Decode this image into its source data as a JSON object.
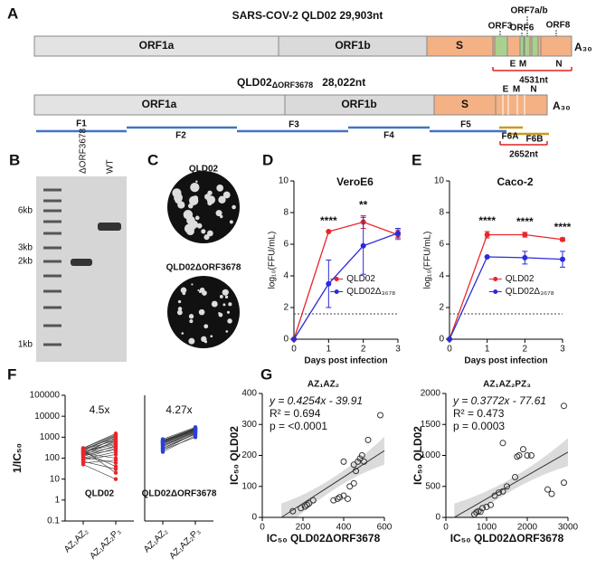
{
  "panel_labels": [
    "A",
    "B",
    "C",
    "D",
    "E",
    "F",
    "G"
  ],
  "genome": {
    "top": {
      "title": "SARS-COV-2  QLD02 29,903nt",
      "genes": [
        "ORF1a",
        "ORF1b",
        "S",
        "ORF3",
        "ORF6",
        "ORF7a/b",
        "ORF8",
        "E",
        "M",
        "N"
      ],
      "tail": "A₃₀",
      "span": "4531nt"
    },
    "bottom": {
      "title": "QLD02",
      "title_sub": "ΔORF3678",
      "length": "28,022nt",
      "genes": [
        "ORF1a",
        "ORF1b",
        "S",
        "E",
        "M",
        "N"
      ],
      "tail": "A₃₀",
      "fragments": [
        "F1",
        "F2",
        "F3",
        "F4",
        "F5",
        "F6A",
        "F6B"
      ],
      "span": "2652nt"
    }
  },
  "gel": {
    "lanes": [
      "ΔORF3678",
      "WT"
    ],
    "markers": [
      "6kb",
      "3kb",
      "2kb",
      "1kb"
    ]
  },
  "plaques": {
    "labels": [
      "QLD02",
      "QLD02ΔORF3678"
    ]
  },
  "chart_data": [
    {
      "type": "line",
      "title": "VeroE6",
      "ylabel": "log₁₀(FFU/mL)",
      "xlabel": "Days post infection",
      "x": [
        0,
        1,
        2,
        3
      ],
      "xlim": [
        0,
        3
      ],
      "xticks": [
        0,
        1,
        2,
        3
      ],
      "ylim": [
        0,
        10
      ],
      "yticks": [
        0,
        2,
        4,
        6,
        8,
        10
      ],
      "limit": 1.6,
      "series": [
        {
          "name": "QLD02",
          "color": "#e8262b",
          "values": [
            0,
            6.8,
            7.4,
            6.6
          ],
          "errors": [
            0,
            0,
            0.4,
            0.3
          ]
        },
        {
          "name": "QLD02Δ₃₆₇₈",
          "color": "#2b2bd9",
          "values": [
            0,
            3.5,
            5.9,
            6.7
          ],
          "errors": [
            0,
            1.5,
            1.8,
            0.3
          ]
        }
      ],
      "annotations": [
        {
          "x": 1,
          "text": "****"
        },
        {
          "x": 2,
          "text": "**"
        }
      ]
    },
    {
      "type": "line",
      "title": "Caco-2",
      "ylabel": "log₁₀(FFU/mL)",
      "xlabel": "Days post infection",
      "x": [
        0,
        1,
        2,
        3
      ],
      "xlim": [
        0,
        3
      ],
      "xticks": [
        0,
        1,
        2,
        3
      ],
      "ylim": [
        0,
        10
      ],
      "yticks": [
        0,
        2,
        4,
        6,
        8,
        10
      ],
      "limit": 1.6,
      "series": [
        {
          "name": "QLD02",
          "color": "#e8262b",
          "values": [
            0,
            6.6,
            6.6,
            6.3
          ],
          "errors": [
            0,
            0.2,
            0.15,
            0.1
          ]
        },
        {
          "name": "QLD02Δ₃₆₇₈",
          "color": "#2b2bd9",
          "values": [
            0,
            5.2,
            5.15,
            5.05
          ],
          "errors": [
            0,
            0,
            0.4,
            0.5
          ]
        }
      ],
      "annotations": [
        {
          "x": 1,
          "text": "****"
        },
        {
          "x": 2,
          "text": "****"
        },
        {
          "x": 3,
          "text": "****"
        }
      ]
    },
    {
      "type": "paired",
      "ylabel": "1/IC₅₀",
      "log": true,
      "ylim": [
        0.1,
        100000
      ],
      "yticks": [
        0.1,
        1,
        10,
        100,
        1000,
        10000,
        100000
      ],
      "categories": [
        "AZ₁AZ₂",
        "AZ₁AZ₂P₃"
      ],
      "series": [
        {
          "name": "QLD02",
          "color": "#e8262b",
          "annotation": "4.5x",
          "pairs": [
            [
              300,
              1500
            ],
            [
              250,
              1200
            ],
            [
              280,
              900
            ],
            [
              200,
              800
            ],
            [
              180,
              600
            ],
            [
              150,
              1000
            ],
            [
              220,
              500
            ],
            [
              260,
              700
            ],
            [
              100,
              300
            ],
            [
              120,
              400
            ],
            [
              90,
              200
            ],
            [
              80,
              150
            ],
            [
              60,
              80
            ],
            [
              200,
              40
            ],
            [
              250,
              20
            ],
            [
              170,
              100
            ],
            [
              140,
              250
            ],
            [
              300,
              1300
            ],
            [
              110,
              60
            ],
            [
              70,
              30
            ],
            [
              230,
              1100
            ],
            [
              190,
              450
            ],
            [
              160,
              350
            ],
            [
              130,
              700
            ],
            [
              50,
              10
            ]
          ]
        },
        {
          "name": "QLD02ΔORF3678",
          "color": "#2b3fd9",
          "annotation": "4.27x",
          "pairs": [
            [
              800,
              3000
            ],
            [
              700,
              2800
            ],
            [
              650,
              2500
            ],
            [
              600,
              2400
            ],
            [
              550,
              2300
            ],
            [
              500,
              2200
            ],
            [
              450,
              2000
            ],
            [
              400,
              1900
            ],
            [
              350,
              1800
            ],
            [
              300,
              1600
            ],
            [
              250,
              1500
            ],
            [
              200,
              1200
            ],
            [
              600,
              2600
            ],
            [
              700,
              2700
            ],
            [
              500,
              2100
            ],
            [
              400,
              1700
            ],
            [
              300,
              1400
            ],
            [
              250,
              1000
            ],
            [
              550,
              2300
            ],
            [
              650,
              2500
            ]
          ]
        }
      ]
    },
    {
      "type": "scatter",
      "title": "AZ₁AZ₂",
      "xlabel": "IC₅₀ QLD02ΔORF3678",
      "ylabel": "IC₅₀ QLD02",
      "xlim": [
        0,
        600
      ],
      "xticks": [
        0,
        200,
        400,
        600
      ],
      "ylim": [
        0,
        400
      ],
      "yticks": [
        0,
        100,
        200,
        300,
        400
      ],
      "fit": {
        "slope": 0.4254,
        "intercept": -39.91,
        "label": "y = 0.4254x - 39.91"
      },
      "annotations": [
        "R² = 0.694",
        "p = <0.0001"
      ],
      "x": [
        210,
        220,
        230,
        250,
        190,
        350,
        370,
        380,
        400,
        420,
        430,
        450,
        460,
        470,
        480,
        490,
        500,
        450,
        520,
        580,
        400,
        150
      ],
      "values": [
        35,
        40,
        45,
        55,
        30,
        55,
        60,
        65,
        70,
        60,
        100,
        110,
        150,
        180,
        190,
        200,
        180,
        170,
        250,
        330,
        180,
        20
      ]
    },
    {
      "type": "scatter",
      "title": "AZ₁AZ₂PZ₃",
      "xlabel": "IC₅₀ QLD02ΔORF3678",
      "ylabel": "IC₅₀ QLD02",
      "xlim": [
        0,
        3000
      ],
      "xticks": [
        0,
        1000,
        2000,
        3000
      ],
      "ylim": [
        0,
        2000
      ],
      "yticks": [
        0,
        500,
        1000,
        1500,
        2000
      ],
      "fit": {
        "slope": 0.3772,
        "intercept": -77.61,
        "label": "y = 0.3772x - 77.61"
      },
      "annotations": [
        "R² = 0.473",
        "p = 0.0003"
      ],
      "x": [
        700,
        750,
        800,
        850,
        900,
        1000,
        1100,
        1200,
        1300,
        1400,
        1500,
        1700,
        1750,
        1800,
        1400,
        2000,
        2100,
        2500,
        2600,
        2900,
        2900,
        1900
      ],
      "values": [
        50,
        80,
        100,
        90,
        150,
        170,
        200,
        350,
        400,
        420,
        500,
        650,
        980,
        1000,
        1200,
        1000,
        1000,
        450,
        380,
        560,
        1800,
        1100
      ]
    }
  ]
}
